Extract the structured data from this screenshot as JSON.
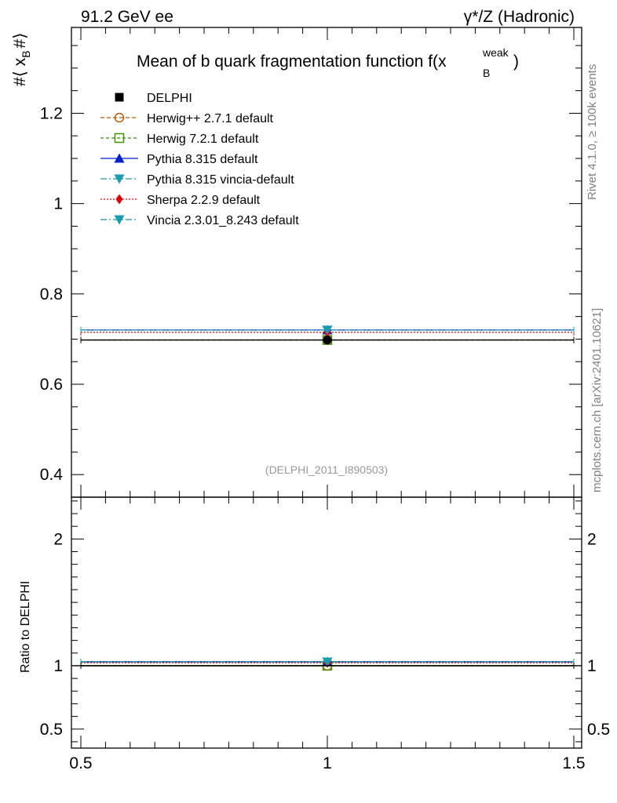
{
  "header": {
    "left": "91.2 GeV ee",
    "right": "γ*/Z (Hadronic)"
  },
  "side_labels": {
    "rivet": "Rivet 4.1.0, ≥ 100k events",
    "mcplots": "mcplots.cern.ch [arXiv:2401.10621]"
  },
  "chart_data": {
    "type": "scatter",
    "title": "Mean of b quark fragmentation function f(x_B^weak)",
    "title_main": "Mean of b quark fragmentation function f(",
    "title_sub": "B",
    "title_sup": "weak",
    "title_x": "x",
    "title_end": ")",
    "ylabel": "#⟨ x_B #⟩",
    "ylabel_main": "#⟨ x",
    "ylabel_sub": "B",
    "ylabel_end": "#⟩",
    "watermark": "(DELPHI_2011_I890503)",
    "xlim": [
      0.5,
      1.5
    ],
    "ylim": [
      0.35,
      1.39
    ],
    "x_ticks": [
      "0.5",
      "1",
      "1.5"
    ],
    "y_ticks": [
      "0.4",
      "0.6",
      "0.8",
      "1",
      "1.2"
    ],
    "legend_position": "top-left",
    "series": [
      {
        "name": "DELPHI",
        "x": 1.0,
        "value": 0.698,
        "xerr": [
          0.5,
          1.5
        ],
        "color": "#000000",
        "marker": "square",
        "dash": "none"
      },
      {
        "name": "Herwig++ 2.7.1 default",
        "x": 1.0,
        "value": 0.698,
        "xerr": [
          0.5,
          1.5
        ],
        "color": "#b35900",
        "marker": "circle-open",
        "dash": "5,3"
      },
      {
        "name": "Herwig 7.2.1 default",
        "x": 1.0,
        "value": 0.698,
        "xerr": [
          0.5,
          1.5
        ],
        "color": "#3a8c00",
        "marker": "square-open",
        "dash": "4,3"
      },
      {
        "name": "Pythia 8.315 default",
        "x": 1.0,
        "value": 0.72,
        "xerr": [
          0.5,
          1.5
        ],
        "color": "#0022cc",
        "marker": "triangle-up",
        "dash": "none"
      },
      {
        "name": "Pythia 8.315 vincia-default",
        "x": 1.0,
        "value": 0.72,
        "xerr": [
          0.5,
          1.5
        ],
        "color": "#1a9bb0",
        "marker": "triangle-down",
        "dash": "8,3,2,3"
      },
      {
        "name": "Sherpa 2.2.9 default",
        "x": 1.0,
        "value": 0.715,
        "xerr": [
          0.5,
          1.5
        ],
        "color": "#e00000",
        "marker": "diamond",
        "dash": "2,2"
      },
      {
        "name": "Vincia 2.3.01_8.243 default",
        "x": 1.0,
        "value": 0.72,
        "xerr": [
          0.5,
          1.5
        ],
        "color": "#1a9bb0",
        "marker": "triangle-down",
        "dash": "8,3,2,3"
      }
    ],
    "ratio": {
      "ylabel": "Ratio to DELPHI",
      "ylim": [
        0.35,
        2.33
      ],
      "y_ticks": [
        "0.5",
        "1",
        "2"
      ],
      "values": [
        1.0,
        1.0,
        1.0,
        1.031,
        1.031,
        1.024,
        1.031
      ]
    }
  }
}
